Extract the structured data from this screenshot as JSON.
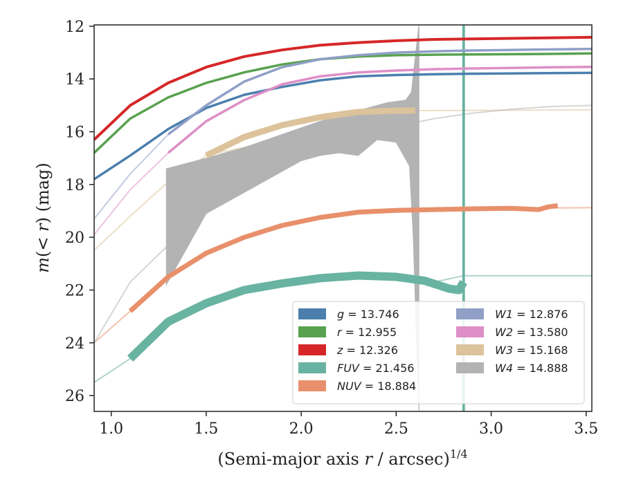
{
  "chart_data": {
    "type": "area",
    "xlabel": "(Semi-major axis r / arcsec)^{1/4}",
    "xlabel_parts": {
      "pre": "(Semi-major axis ",
      "var": "r",
      "post": " / arcsec)",
      "sup": "1/4"
    },
    "ylabel": "m(<r) (mag)",
    "ylabel_parts": {
      "m": "m",
      "inner": "(< ",
      "r": "r",
      "close": ")",
      "unit": " (mag)"
    },
    "xlim": [
      0.91,
      3.53
    ],
    "ylim": [
      26.6,
      11.95
    ],
    "y_inverted": true,
    "grid": false,
    "legend_position": "lower-right",
    "x_tick_labels": [
      "1.0",
      "1.5",
      "2.0",
      "2.5",
      "3.0",
      "3.5"
    ],
    "y_tick_labels": [
      "12",
      "14",
      "16",
      "18",
      "20",
      "22",
      "24",
      "26"
    ],
    "series": [
      {
        "name": "g",
        "legend_value": "13.746",
        "color": "#4c7fae",
        "x": [
          0.91,
          1.1,
          1.3,
          1.5,
          1.7,
          1.9,
          2.1,
          2.3,
          2.5,
          2.7,
          2.9,
          3.1,
          3.3,
          3.53
        ],
        "y": [
          17.8,
          16.9,
          15.9,
          15.1,
          14.6,
          14.3,
          14.05,
          13.9,
          13.85,
          13.82,
          13.8,
          13.79,
          13.78,
          13.77
        ],
        "ext_x": [
          3.53
        ],
        "ext_y": [
          13.75
        ]
      },
      {
        "name": "r",
        "legend_value": "12.955",
        "color": "#59a14f",
        "x": [
          0.91,
          1.1,
          1.3,
          1.5,
          1.7,
          1.9,
          2.1,
          2.3,
          2.5,
          2.7,
          2.9,
          3.1,
          3.3,
          3.53
        ],
        "y": [
          16.8,
          15.5,
          14.7,
          14.15,
          13.75,
          13.45,
          13.25,
          13.15,
          13.1,
          13.08,
          13.07,
          13.06,
          13.05,
          13.03
        ],
        "ext_x": [
          3.53
        ],
        "ext_y": [
          13.0
        ]
      },
      {
        "name": "z",
        "legend_value": "12.326",
        "color": "#d62728",
        "x": [
          0.91,
          1.1,
          1.3,
          1.5,
          1.7,
          1.9,
          2.1,
          2.3,
          2.5,
          2.7,
          2.9,
          3.1,
          3.3,
          3.53
        ],
        "y": [
          16.3,
          15.0,
          14.15,
          13.55,
          13.15,
          12.9,
          12.72,
          12.62,
          12.55,
          12.5,
          12.48,
          12.46,
          12.44,
          12.42
        ],
        "ext_x": [
          3.53
        ],
        "ext_y": [
          12.38
        ]
      },
      {
        "name": "FUV",
        "legend_value": "21.456",
        "color": "#69b3a2",
        "x": [
          1.1,
          1.3,
          1.5,
          1.7,
          1.9,
          2.1,
          2.3,
          2.5,
          2.65,
          2.78,
          2.83,
          2.855
        ],
        "y": [
          24.6,
          23.2,
          22.5,
          22.0,
          21.75,
          21.55,
          21.45,
          21.5,
          21.65,
          21.95,
          22.0,
          21.7
        ],
        "ext_x": [
          0.91,
          1.1,
          1.3,
          1.5,
          1.7,
          1.9,
          2.1,
          2.3,
          2.5,
          2.7,
          2.855,
          3.53
        ],
        "ext_y": [
          25.5,
          24.6,
          23.2,
          22.5,
          22.0,
          21.75,
          21.55,
          21.45,
          21.5,
          21.7,
          21.456,
          21.456
        ]
      },
      {
        "name": "NUV",
        "legend_value": "18.884",
        "color": "#e8906b",
        "x": [
          1.1,
          1.3,
          1.5,
          1.7,
          1.9,
          2.1,
          2.3,
          2.5,
          2.7,
          2.9,
          3.1,
          3.25,
          3.3,
          3.35
        ],
        "y": [
          22.8,
          21.5,
          20.6,
          20.0,
          19.55,
          19.25,
          19.05,
          18.98,
          18.95,
          18.92,
          18.9,
          18.95,
          18.85,
          18.8
        ],
        "ext_x": [
          0.91,
          1.1,
          1.3,
          1.5,
          1.7,
          1.9,
          2.1,
          2.3,
          2.5,
          2.7,
          2.9,
          3.1,
          3.53
        ],
        "ext_y": [
          24.0,
          22.8,
          21.5,
          20.6,
          20.0,
          19.55,
          19.25,
          19.05,
          18.98,
          18.95,
          18.92,
          18.9,
          18.88
        ]
      },
      {
        "name": "W1",
        "legend_value": "12.876",
        "color": "#8f9fc6",
        "x": [
          1.3,
          1.5,
          1.7,
          1.9,
          2.1,
          2.3,
          2.5,
          2.7,
          2.9,
          3.1,
          3.3,
          3.53
        ],
        "y": [
          16.1,
          15.0,
          14.1,
          13.55,
          13.25,
          13.1,
          13.0,
          12.95,
          12.92,
          12.9,
          12.88,
          12.86
        ],
        "ext_x": [
          0.91,
          1.1,
          1.3
        ],
        "ext_y": [
          19.3,
          17.6,
          16.1
        ]
      },
      {
        "name": "W2",
        "legend_value": "13.580",
        "color": "#dd8fc6",
        "x": [
          1.3,
          1.5,
          1.7,
          1.9,
          2.1,
          2.3,
          2.5,
          2.7,
          2.9,
          3.1,
          3.3,
          3.53
        ],
        "y": [
          16.8,
          15.6,
          14.8,
          14.2,
          13.9,
          13.75,
          13.68,
          13.63,
          13.6,
          13.58,
          13.56,
          13.54
        ],
        "ext_x": [
          0.91,
          1.1,
          1.3
        ],
        "ext_y": [
          19.9,
          18.2,
          16.8
        ]
      },
      {
        "name": "W3",
        "legend_value": "15.168",
        "color": "#dcc39b",
        "x": [
          1.5,
          1.7,
          1.9,
          2.1,
          2.3,
          2.5,
          2.6
        ],
        "y": [
          16.9,
          16.2,
          15.75,
          15.45,
          15.25,
          15.2,
          15.2
        ],
        "ext_x": [
          0.91,
          1.1,
          1.3,
          1.5,
          2.6,
          3.53
        ],
        "ext_y": [
          20.5,
          19.2,
          17.9,
          16.9,
          15.2,
          15.17
        ]
      },
      {
        "name": "W4",
        "legend_value": "14.888",
        "color": "#b3b3b3",
        "x_top": [
          1.29,
          1.5,
          1.7,
          1.9,
          2.1,
          2.3,
          2.45,
          2.55,
          2.58,
          2.62
        ],
        "y_top": [
          17.4,
          17.0,
          16.6,
          16.1,
          15.6,
          15.2,
          14.9,
          14.8,
          14.5,
          11.9
        ],
        "x_bot": [
          2.62,
          2.605,
          2.59,
          2.57,
          2.5,
          2.4,
          2.3,
          2.2,
          2.1,
          2.0,
          1.9,
          1.7,
          1.5,
          1.29
        ],
        "y_bot": [
          26.6,
          23.5,
          20.0,
          17.3,
          16.4,
          16.3,
          16.9,
          16.8,
          16.9,
          17.1,
          17.5,
          18.3,
          19.1,
          21.8
        ],
        "ext_x": [
          0.91,
          1.1,
          1.3,
          1.5,
          1.7,
          1.9,
          2.1,
          2.3,
          2.5,
          2.7,
          2.9,
          3.1,
          3.3,
          3.53
        ],
        "ext_y": [
          24.0,
          21.7,
          20.3,
          19.1,
          18.1,
          17.3,
          16.7,
          16.2,
          15.8,
          15.5,
          15.3,
          15.15,
          15.05,
          15.0
        ]
      }
    ]
  }
}
